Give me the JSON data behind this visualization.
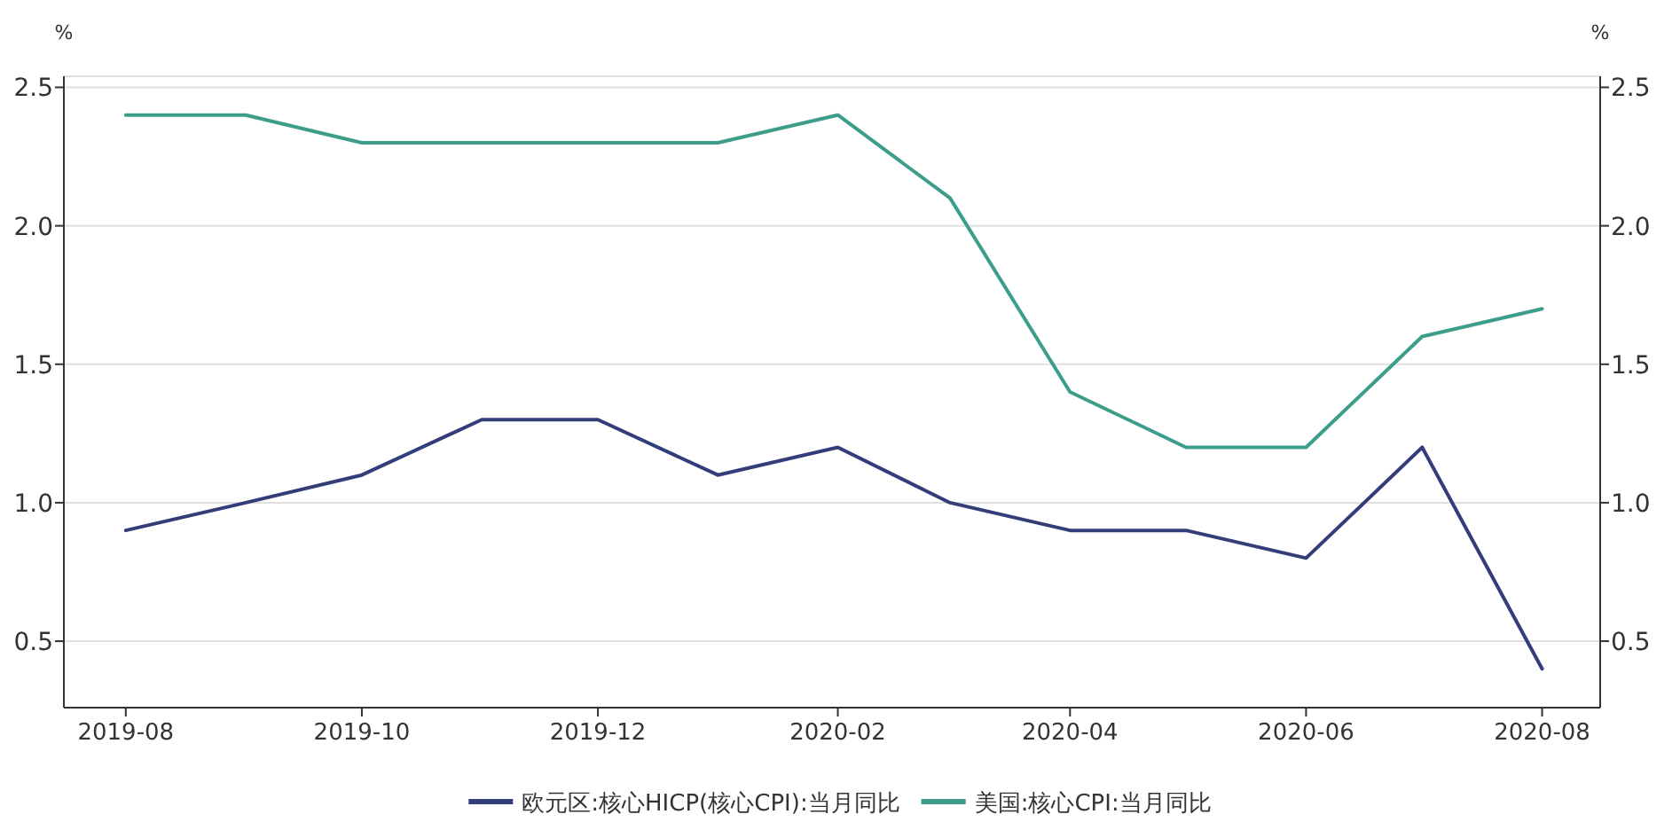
{
  "chart_data": {
    "type": "line",
    "x": [
      "2019-08",
      "2019-09",
      "2019-10",
      "2019-11",
      "2019-12",
      "2020-01",
      "2020-02",
      "2020-03",
      "2020-04",
      "2020-05",
      "2020-06",
      "2020-07",
      "2020-08"
    ],
    "series": [
      {
        "name": "欧元区:核心HICP(核心CPI):当月同比",
        "color": "#333d7a",
        "values": [
          0.9,
          1.0,
          1.1,
          1.3,
          1.3,
          1.1,
          1.2,
          1.0,
          0.9,
          0.9,
          0.8,
          1.2,
          0.4
        ]
      },
      {
        "name": "美国:核心CPI:当月同比",
        "color": "#3c9e8a",
        "values": [
          2.4,
          2.4,
          2.3,
          2.3,
          2.3,
          2.3,
          2.4,
          2.1,
          1.4,
          1.2,
          1.2,
          1.6,
          1.7
        ]
      }
    ],
    "ylabel": "%",
    "y2label": "%",
    "xlim": [
      "2019-07-16",
      "2020-08-16"
    ],
    "xticks": [
      {
        "value": "2019-08",
        "label": "2019-08"
      },
      {
        "value": "2019-10",
        "label": "2019-10"
      },
      {
        "value": "2019-12",
        "label": "2019-12"
      },
      {
        "value": "2020-02",
        "label": "2020-02"
      },
      {
        "value": "2020-04",
        "label": "2020-04"
      },
      {
        "value": "2020-06",
        "label": "2020-06"
      },
      {
        "value": "2020-08",
        "label": "2020-08"
      }
    ],
    "ylim": [
      0.26,
      2.54
    ],
    "yticks": [
      {
        "value": 0.5,
        "label": "0.5"
      },
      {
        "value": 1.0,
        "label": "1.0"
      },
      {
        "value": 1.5,
        "label": "1.5"
      },
      {
        "value": 2.0,
        "label": "2.0"
      },
      {
        "value": 2.5,
        "label": "2.5"
      }
    ],
    "y2lim": [
      0.26,
      2.54
    ],
    "y2ticks": [
      {
        "value": 0.5,
        "label": "0.5"
      },
      {
        "value": 1.0,
        "label": "1.0"
      },
      {
        "value": 1.5,
        "label": "1.5"
      },
      {
        "value": 2.0,
        "label": "2.0"
      },
      {
        "value": 2.5,
        "label": "2.5"
      }
    ],
    "grid": "y",
    "legend": "bottom",
    "marker": "none",
    "line_style": "solid"
  }
}
